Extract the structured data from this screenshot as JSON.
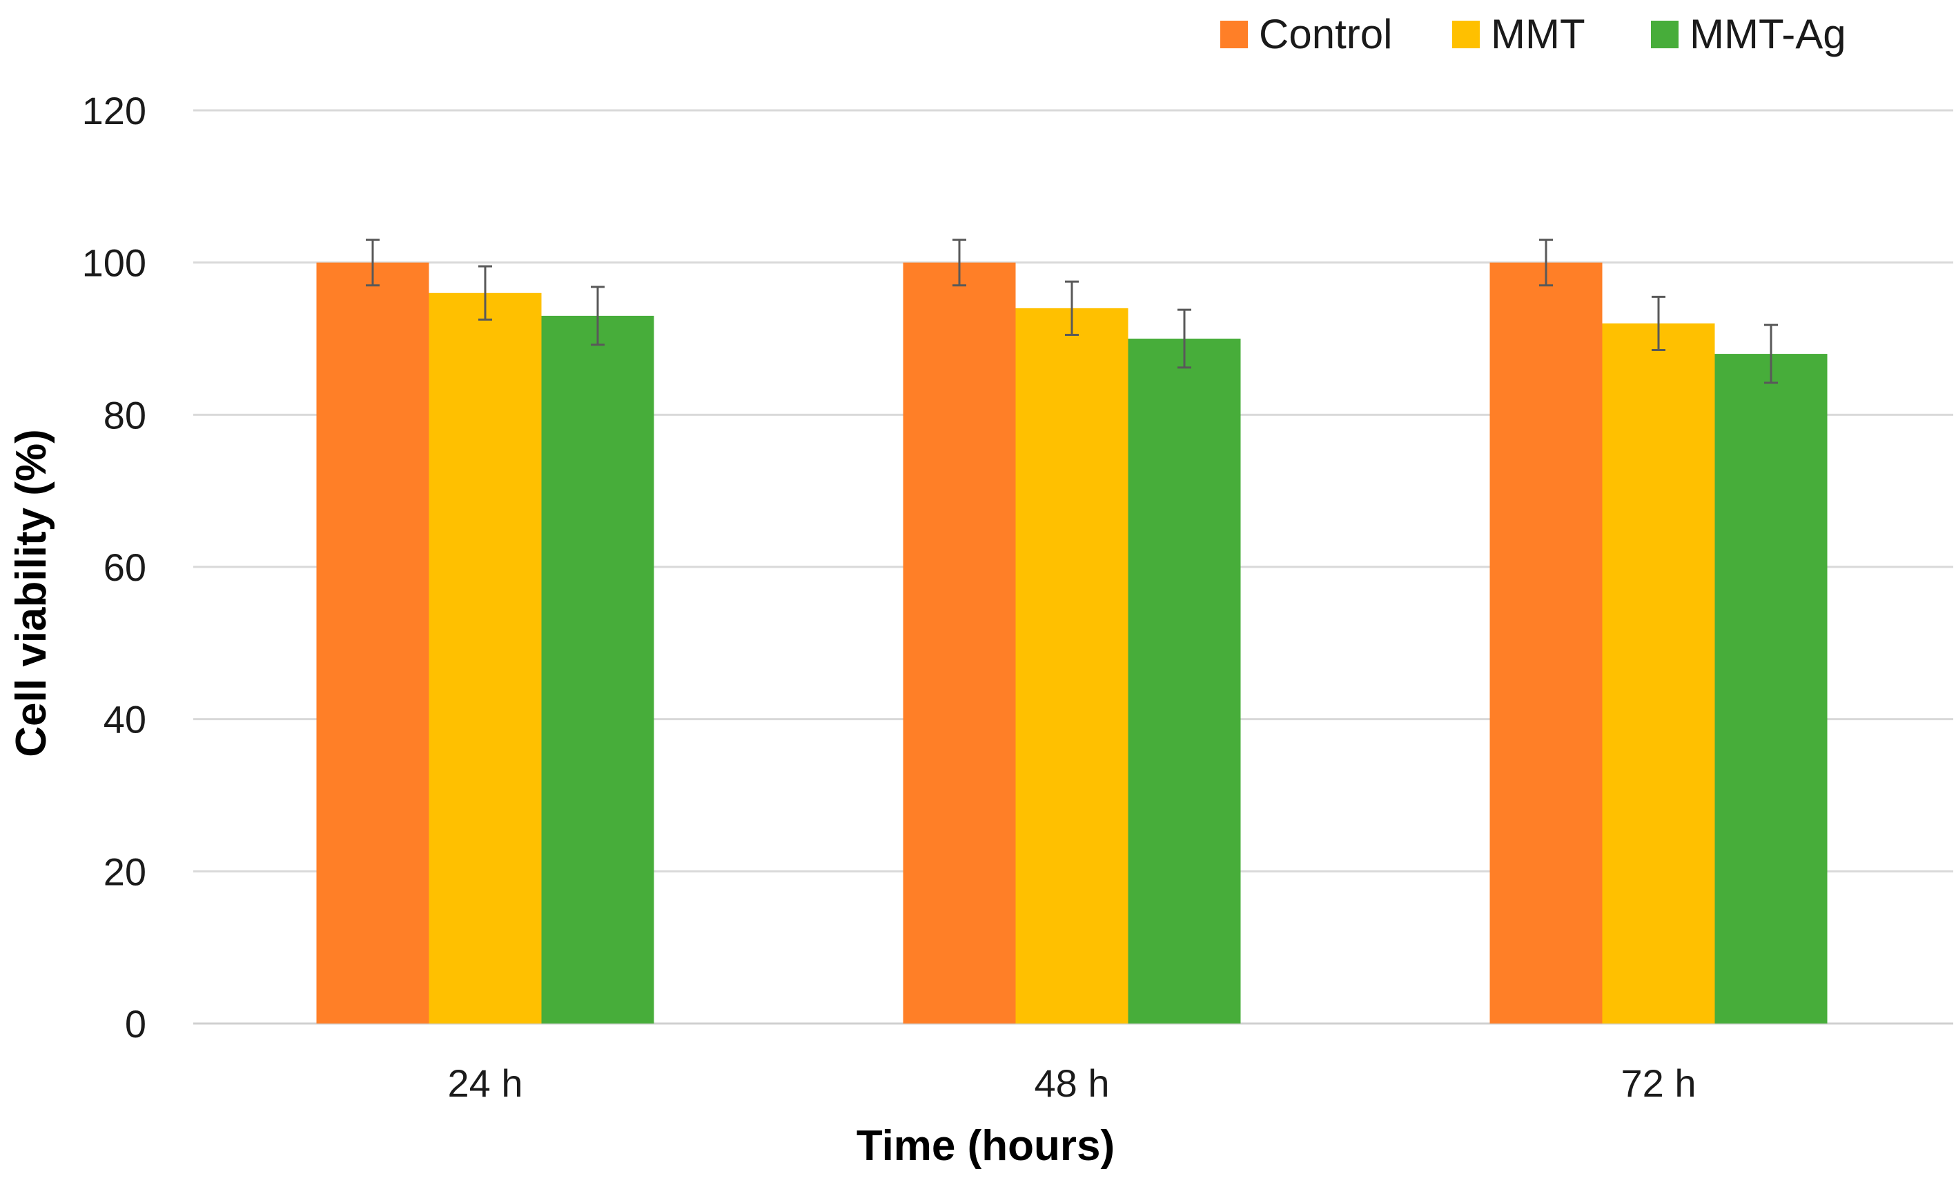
{
  "chart_data": {
    "type": "bar",
    "title": "",
    "xlabel": "Time (hours)",
    "ylabel": "Cell  viability (%)",
    "categories": [
      "24 h",
      "48 h",
      "72 h"
    ],
    "ylim": [
      0,
      120
    ],
    "yticks": [
      0,
      20,
      40,
      60,
      80,
      100,
      120
    ],
    "grid": true,
    "legend_position": "top-right",
    "series": [
      {
        "name": "Control",
        "color": "#FF7F27",
        "values": [
          100,
          100,
          100
        ],
        "errors": [
          3,
          3,
          3
        ]
      },
      {
        "name": "MMT",
        "color": "#FFC000",
        "values": [
          96,
          94,
          92
        ],
        "errors": [
          3.5,
          3.5,
          3.5
        ]
      },
      {
        "name": "MMT-Ag",
        "color": "#47AD3A",
        "values": [
          93,
          90,
          88
        ],
        "errors": [
          3.8,
          3.8,
          3.8
        ]
      }
    ]
  }
}
